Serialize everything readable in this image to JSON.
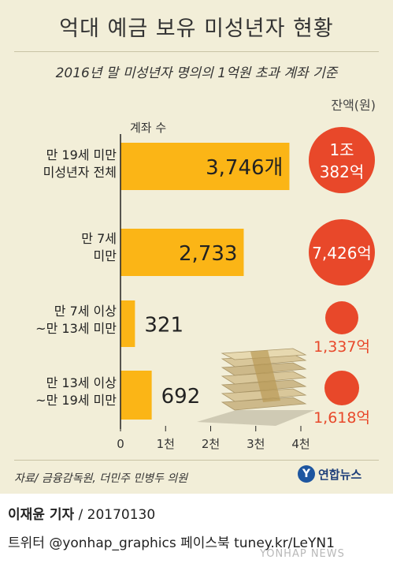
{
  "title": "억대 예금 보유 미성년자 현황",
  "subtitle": "2016년 말 미성년자 명의의 1억원 초과 계좌 기준",
  "unit_label": "잔액(원)",
  "axis_title": "계좌 수",
  "source": "자료/ 금융감독원, 더민주 민병두 의원",
  "logo": "연합뉴스",
  "reporter": "이재윤 기자",
  "date": "/ 20170130",
  "social": "트위터 @yonhap_graphics  페이스북 tuney.kr/LeYN1",
  "watermark": "YONHAP NEWS",
  "colors": {
    "bar": "#fbb516",
    "circle": "#e8482a",
    "panel": "#f2eed8"
  },
  "chart_data": {
    "type": "bar",
    "orientation": "horizontal",
    "categories": [
      [
        "만 19세 미만",
        "미성년자 전체"
      ],
      [
        "만 7세",
        "미만"
      ],
      [
        "만 7세 이상",
        "~만 13세 미만"
      ],
      [
        "만 13세 이상",
        "~만 19세 미만"
      ]
    ],
    "values": [
      3746,
      2733,
      321,
      692
    ],
    "value_labels": [
      "3,746개",
      "2,733",
      "321",
      "692"
    ],
    "xlim": [
      0,
      4000
    ],
    "xticks": [
      0,
      1000,
      2000,
      3000,
      4000
    ],
    "xtick_labels": [
      "0",
      "1천",
      "2천",
      "3천",
      "4천"
    ],
    "balance_series": {
      "name": "잔액(원)",
      "values_krw_eok": [
        10382,
        7426,
        1337,
        1618
      ],
      "labels": [
        [
          "1조",
          "382억"
        ],
        [
          "7,426억"
        ],
        [
          "1,337억"
        ],
        [
          "1,618억"
        ]
      ]
    }
  }
}
